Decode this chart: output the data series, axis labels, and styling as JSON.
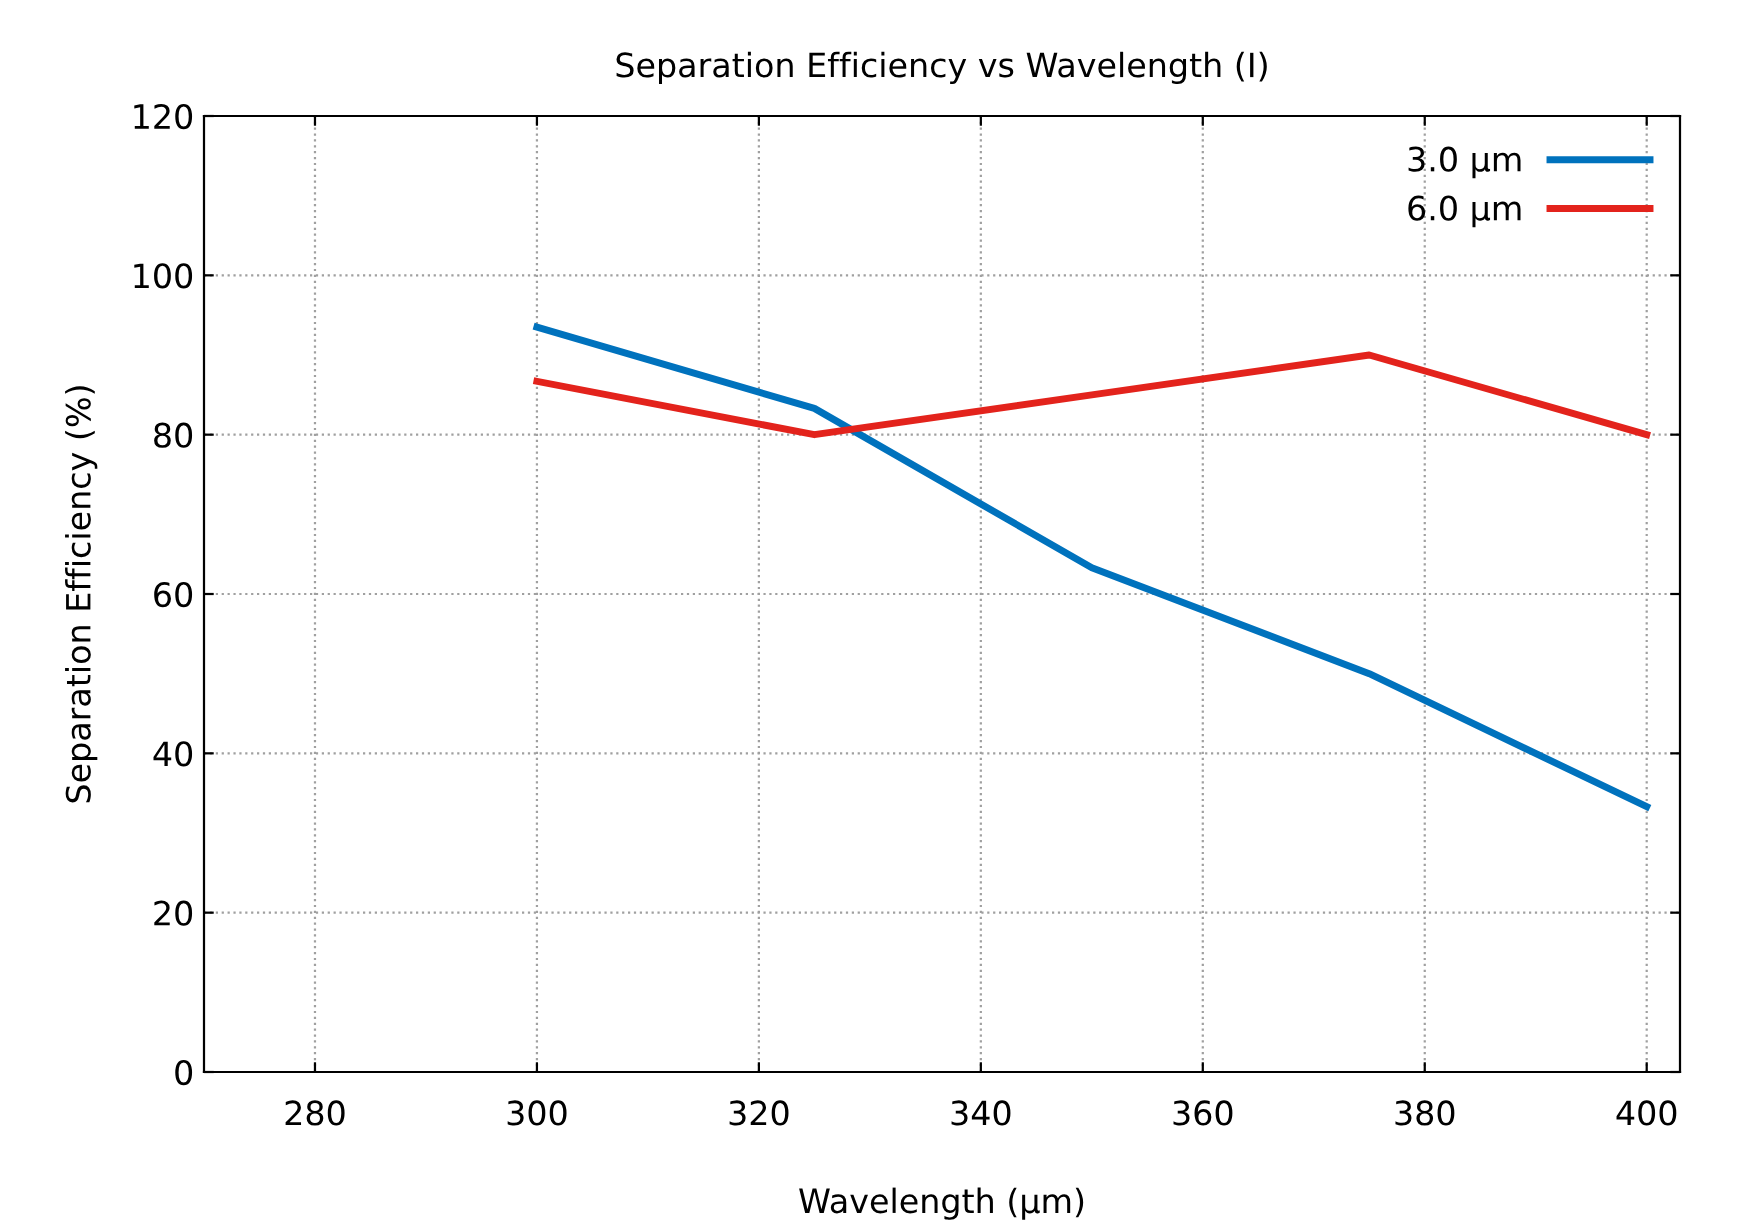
{
  "chart_data": {
    "type": "line",
    "title": "Separation Efficiency vs Wavelength (I)",
    "xlabel": "Wavelength (µm)",
    "ylabel": "Separation Efficiency (%)",
    "x": [
      300,
      325,
      350,
      375,
      400
    ],
    "series": [
      {
        "name": "3.0 µm",
        "color": "#0072bd",
        "values": [
          93.5,
          83.3,
          63.3,
          50,
          33.3
        ]
      },
      {
        "name": "6.0 µm",
        "color": "#e3231c",
        "values": [
          86.7,
          80,
          85,
          90,
          80
        ]
      }
    ],
    "xlim": [
      270,
      403
    ],
    "xticks": [
      280,
      300,
      320,
      340,
      360,
      380,
      400
    ],
    "ylim": [
      0,
      120
    ],
    "yticks": [
      0,
      20,
      40,
      60,
      80,
      100,
      120
    ],
    "grid": true,
    "legend": "top right",
    "marker": "none",
    "line_style": "solid"
  }
}
